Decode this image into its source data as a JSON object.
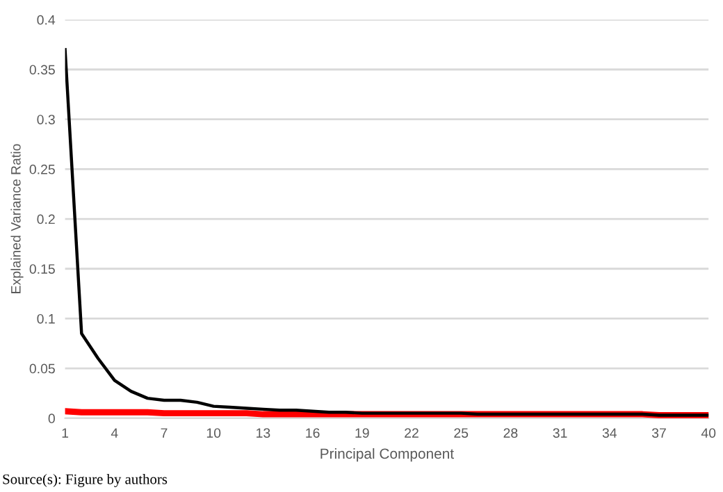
{
  "chart_data": {
    "type": "line",
    "xlabel": "Principal Component",
    "ylabel": "Explained Variance Ratio",
    "categories": [
      "1",
      null,
      null,
      "4",
      null,
      null,
      "7",
      null,
      null,
      "10",
      null,
      null,
      "13",
      null,
      null,
      "16",
      null,
      null,
      "19",
      null,
      null,
      "22",
      null,
      null,
      "25",
      null,
      null,
      "28",
      null,
      null,
      "31",
      null,
      null,
      "34",
      null,
      null,
      "37",
      null,
      null,
      "40"
    ],
    "series": [
      {
        "color": "#000000",
        "values": [
          0.37,
          0.085,
          0.06,
          0.038,
          0.027,
          0.02,
          0.018,
          0.018,
          0.016,
          0.012,
          0.011,
          0.01,
          0.009,
          0.008,
          0.008,
          0.007,
          0.006,
          0.006,
          0.005,
          0.005,
          0.005,
          0.005,
          0.005,
          0.005,
          0.005,
          0.004,
          0.004,
          0.004,
          0.004,
          0.004,
          0.004,
          0.004,
          0.004,
          0.004,
          0.004,
          0.004,
          0.003,
          0.003,
          0.003,
          0.003
        ]
      },
      {
        "color": "#ff0000",
        "values": [
          0.007,
          0.006,
          0.006,
          0.006,
          0.006,
          0.006,
          0.005,
          0.005,
          0.005,
          0.005,
          0.005,
          0.005,
          0.004,
          0.004,
          0.004,
          0.004,
          0.004,
          0.004,
          0.004,
          0.004,
          0.004,
          0.004,
          0.004,
          0.004,
          0.004,
          0.004,
          0.004,
          0.004,
          0.004,
          0.004,
          0.004,
          0.004,
          0.004,
          0.004,
          0.004,
          0.004,
          0.003,
          0.003,
          0.003,
          0.003
        ]
      }
    ],
    "ylim": [
      0,
      0.4
    ],
    "yticks": [
      0,
      0.05,
      0.1,
      0.15,
      0.2,
      0.25,
      0.3,
      0.35,
      0.4
    ],
    "grid": "y",
    "marker": "none",
    "line_style": "solid",
    "annotations": [
      "Source(s): Figure by authors"
    ]
  }
}
